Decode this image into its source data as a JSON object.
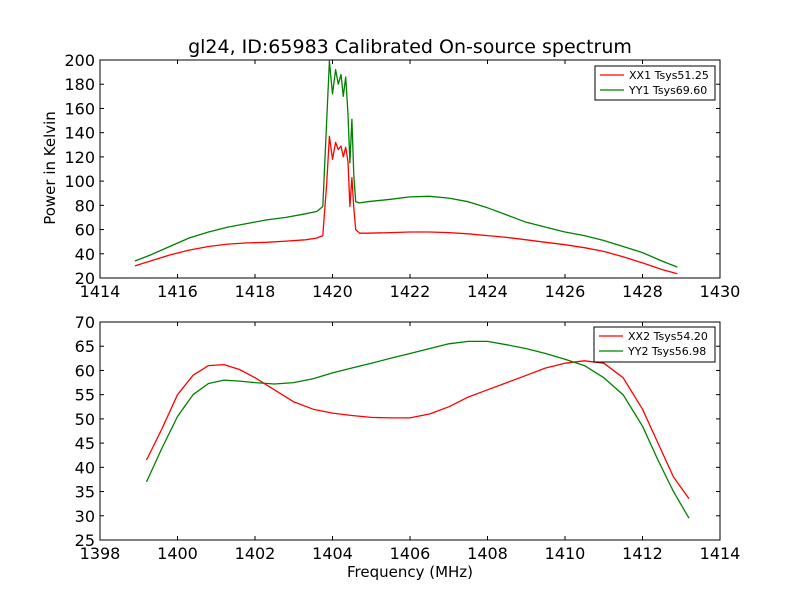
{
  "figure": {
    "title": "gl24, ID:65983 Calibrated On-source spectrum",
    "ylabel": "Power in Kelvin",
    "xlabel": "Frequency (MHz)"
  },
  "chart_data": [
    {
      "type": "line",
      "title": "gl24, ID:65983 Calibrated On-source spectrum",
      "xlabel": "",
      "ylabel": "Power in Kelvin",
      "xlim": [
        1414,
        1430
      ],
      "ylim": [
        20,
        200
      ],
      "xticks": [
        1414,
        1416,
        1418,
        1420,
        1422,
        1424,
        1426,
        1428,
        1430
      ],
      "yticks": [
        20,
        40,
        60,
        80,
        100,
        120,
        140,
        160,
        180,
        200
      ],
      "grid": false,
      "legend_position": "top-right",
      "series": [
        {
          "name": "XX1 Tsys51.25",
          "color": "#ff0000",
          "x": [
            1414.9,
            1415.3,
            1415.8,
            1416.3,
            1416.8,
            1417.3,
            1417.8,
            1418.3,
            1418.8,
            1419.3,
            1419.6,
            1419.75,
            1419.85,
            1419.92,
            1420.0,
            1420.08,
            1420.15,
            1420.22,
            1420.28,
            1420.34,
            1420.4,
            1420.45,
            1420.5,
            1420.55,
            1420.6,
            1420.7,
            1420.9,
            1421.5,
            1422.0,
            1422.5,
            1423.0,
            1423.5,
            1424.0,
            1424.5,
            1425.0,
            1425.5,
            1426.0,
            1426.5,
            1427.0,
            1427.5,
            1428.0,
            1428.5,
            1428.9
          ],
          "y": [
            30,
            34,
            39,
            43,
            46,
            48,
            49,
            49.5,
            50.5,
            51.5,
            53,
            55,
            98,
            137,
            118,
            132,
            126,
            129,
            120,
            128,
            116,
            79,
            103,
            78,
            60,
            57,
            57,
            57.5,
            58,
            58,
            57.5,
            56.5,
            55,
            53.5,
            51.5,
            49.5,
            47.5,
            45,
            42,
            37.5,
            32.5,
            27,
            23.5
          ]
        },
        {
          "name": "YY1 Tsys69.60",
          "color": "#008000",
          "x": [
            1414.9,
            1415.3,
            1415.8,
            1416.3,
            1416.8,
            1417.3,
            1417.8,
            1418.3,
            1418.8,
            1419.3,
            1419.6,
            1419.75,
            1419.85,
            1419.92,
            1420.0,
            1420.08,
            1420.15,
            1420.22,
            1420.28,
            1420.34,
            1420.4,
            1420.45,
            1420.5,
            1420.55,
            1420.6,
            1420.7,
            1420.9,
            1421.5,
            1422.0,
            1422.5,
            1423.0,
            1423.5,
            1424.0,
            1424.5,
            1425.0,
            1425.5,
            1426.0,
            1426.5,
            1427.0,
            1427.5,
            1428.0,
            1428.5,
            1428.9
          ],
          "y": [
            34,
            39,
            46,
            53,
            58,
            62,
            65,
            68,
            70,
            73,
            75,
            79,
            150,
            199,
            172,
            192,
            180,
            188,
            170,
            186,
            155,
            115,
            151,
            105,
            83,
            82,
            83,
            85,
            87,
            87.5,
            86,
            83,
            78,
            72,
            66,
            62,
            58,
            55,
            51,
            46,
            41,
            34,
            29
          ]
        }
      ]
    },
    {
      "type": "line",
      "title": "",
      "xlabel": "Frequency (MHz)",
      "ylabel": "",
      "xlim": [
        1398,
        1414
      ],
      "ylim": [
        25,
        70
      ],
      "xticks": [
        1398,
        1400,
        1402,
        1404,
        1406,
        1408,
        1410,
        1412,
        1414
      ],
      "yticks": [
        25,
        30,
        35,
        40,
        45,
        50,
        55,
        60,
        65,
        70
      ],
      "grid": false,
      "legend_position": "top-right",
      "series": [
        {
          "name": "XX2 Tsys54.20",
          "color": "#ff0000",
          "x": [
            1399.2,
            1399.6,
            1400.0,
            1400.4,
            1400.8,
            1401.2,
            1401.6,
            1402.0,
            1402.5,
            1403.0,
            1403.5,
            1404.0,
            1404.5,
            1405.0,
            1405.5,
            1406.0,
            1406.5,
            1407.0,
            1407.5,
            1408.0,
            1408.5,
            1409.0,
            1409.5,
            1410.0,
            1410.5,
            1411.0,
            1411.5,
            1412.0,
            1412.4,
            1412.8,
            1413.2
          ],
          "y": [
            41.5,
            48,
            55,
            59,
            61,
            61.2,
            60.2,
            58.5,
            56,
            53.5,
            52,
            51.2,
            50.7,
            50.3,
            50.2,
            50.2,
            51,
            52.5,
            54.5,
            56,
            57.5,
            59,
            60.5,
            61.5,
            62,
            61.5,
            58.5,
            52,
            45,
            38,
            33.5
          ]
        },
        {
          "name": "YY2 Tsys56.98",
          "color": "#008000",
          "x": [
            1399.2,
            1399.6,
            1400.0,
            1400.4,
            1400.8,
            1401.2,
            1401.6,
            1402.0,
            1402.5,
            1403.0,
            1403.5,
            1404.0,
            1404.5,
            1405.0,
            1405.5,
            1406.0,
            1406.5,
            1407.0,
            1407.5,
            1408.0,
            1408.5,
            1409.0,
            1409.5,
            1410.0,
            1410.5,
            1411.0,
            1411.5,
            1412.0,
            1412.4,
            1412.8,
            1413.2
          ],
          "y": [
            37,
            44,
            50.5,
            55,
            57.3,
            58,
            57.8,
            57.5,
            57.2,
            57.5,
            58.3,
            59.5,
            60.5,
            61.5,
            62.5,
            63.5,
            64.5,
            65.5,
            66,
            66,
            65.3,
            64.5,
            63.5,
            62.3,
            61,
            58.5,
            55,
            48.5,
            41.5,
            35,
            29.5
          ]
        }
      ]
    }
  ]
}
